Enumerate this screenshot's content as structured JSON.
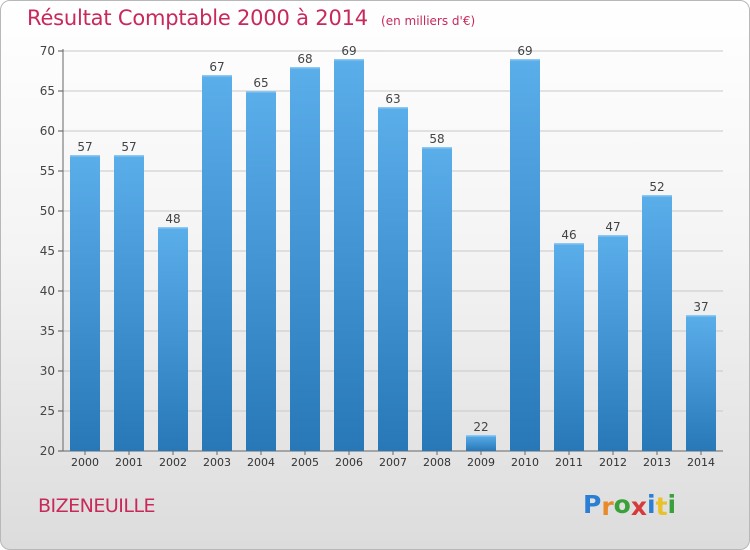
{
  "header": {
    "title": "Résultat Comptable 2000 à 2014",
    "subtitle": "(en milliers d'€)"
  },
  "footer": {
    "commune": "BIZENEUILLE",
    "logo_text": "Proxiti",
    "logo_letters": [
      {
        "ch": "P",
        "color": "#2a7fd4"
      },
      {
        "ch": "r",
        "color": "#e8892a"
      },
      {
        "ch": "o",
        "color": "#3aa03a"
      },
      {
        "ch": "x",
        "color": "#d63a3a"
      },
      {
        "ch": "i",
        "color": "#2a7fd4"
      },
      {
        "ch": "t",
        "color": "#e8c22a"
      },
      {
        "ch": "i",
        "color": "#3aa03a"
      }
    ]
  },
  "colors": {
    "accent": "#c8285a",
    "bar_light": "#5aaeea",
    "bar_dark": "#2878b8",
    "grid": "#c8c8c8"
  },
  "chart_data": {
    "type": "bar",
    "categories": [
      "2000",
      "2001",
      "2002",
      "2003",
      "2004",
      "2005",
      "2006",
      "2007",
      "2008",
      "2009",
      "2010",
      "2011",
      "2012",
      "2013",
      "2014"
    ],
    "values": [
      57,
      57,
      48,
      67,
      65,
      68,
      69,
      63,
      58,
      22,
      69,
      46,
      47,
      52,
      37
    ],
    "ylim": [
      20,
      70
    ],
    "yticks": [
      20,
      25,
      30,
      35,
      40,
      45,
      50,
      55,
      60,
      65,
      70
    ],
    "grid": true,
    "xlabel": "",
    "ylabel": ""
  }
}
